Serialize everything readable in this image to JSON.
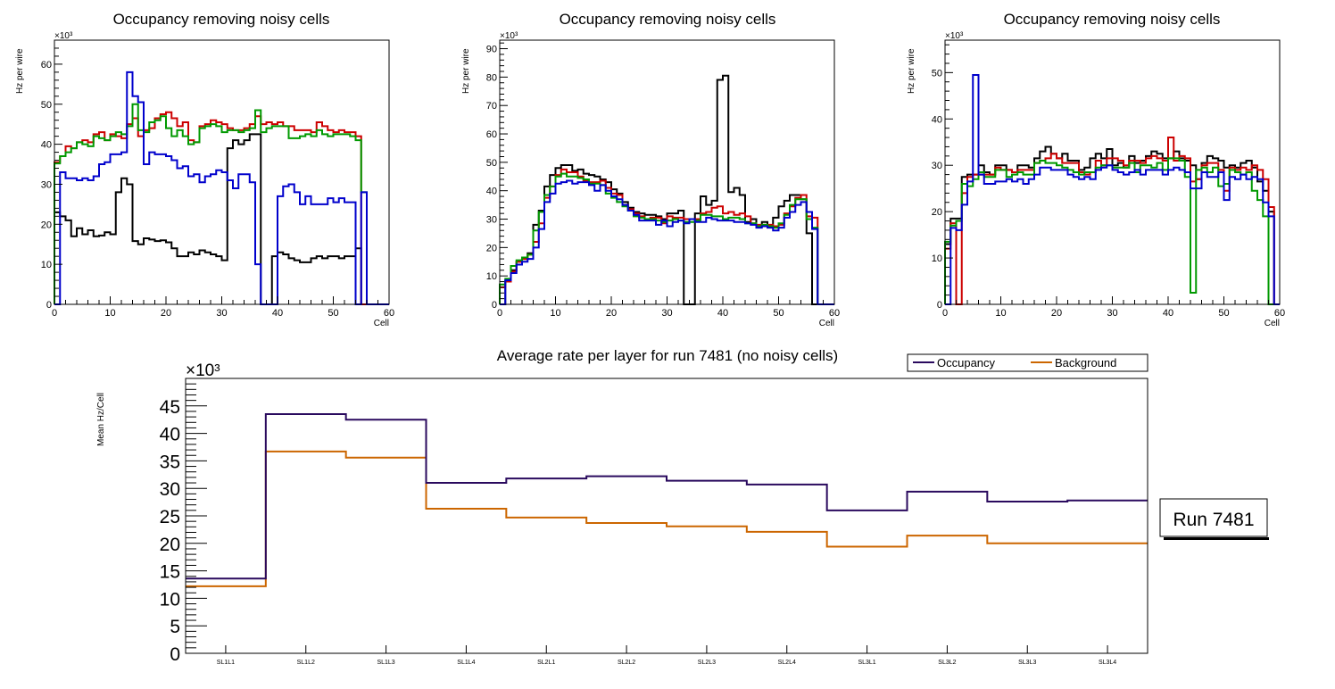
{
  "chart_data": [
    {
      "type": "line",
      "subtype": "step-histogram",
      "title": "Occupancy removing noisy cells",
      "xlabel": "Cell",
      "ylabel": "Hz per wire",
      "y_multiplier_label": "×10³",
      "xlim": [
        0,
        60
      ],
      "ylim": [
        0,
        66
      ],
      "xticks": [
        "0",
        "10",
        "20",
        "30",
        "40",
        "50",
        "60"
      ],
      "yticks": [
        "0",
        "10",
        "20",
        "30",
        "40",
        "50",
        "60"
      ],
      "y_unit": "kHz (×10³ Hz)",
      "series": [
        {
          "name": "black",
          "color": "#000000",
          "values": [
            23,
            22,
            21,
            17,
            19,
            17.5,
            18.5,
            17,
            17.2,
            18,
            17.5,
            28,
            31.5,
            30,
            15.8,
            15,
            16.5,
            16.2,
            15.8,
            16,
            15.5,
            14,
            12,
            12,
            13,
            12.5,
            13.5,
            13,
            12.5,
            12,
            11,
            39,
            41,
            40,
            41,
            42.5,
            42.5,
            0,
            0,
            12,
            13,
            12.5,
            11.5,
            11,
            10.5,
            10.5,
            11.5,
            12,
            11.5,
            12,
            12,
            11.5,
            12,
            12,
            14,
            0,
            0,
            0,
            0,
            0
          ]
        },
        {
          "name": "red",
          "color": "#cc0000",
          "values": [
            35.5,
            37,
            39.5,
            39,
            40.5,
            41,
            40.5,
            42.5,
            43,
            41,
            42.5,
            42,
            41.5,
            45,
            46.5,
            42,
            43.5,
            44,
            46.5,
            47.5,
            48,
            46.5,
            44.5,
            45.5,
            41,
            40.5,
            44.5,
            45,
            46,
            45.5,
            45,
            44,
            43.5,
            43.5,
            44,
            45,
            47,
            45,
            45.5,
            45,
            45.5,
            44.5,
            44.5,
            43.5,
            43.5,
            43.5,
            43,
            45.5,
            44.5,
            43.5,
            43,
            43.5,
            43,
            43,
            42,
            0,
            0,
            0,
            0,
            0
          ]
        },
        {
          "name": "green",
          "color": "#009900",
          "values": [
            35.2,
            37,
            38,
            39,
            40.5,
            40,
            39.5,
            42,
            41.5,
            41,
            42,
            43,
            42.5,
            44.5,
            50,
            43.5,
            43,
            45.5,
            46,
            47,
            44,
            42,
            43.5,
            42,
            40,
            40.5,
            44,
            44.5,
            45,
            44.5,
            43,
            43.5,
            43.5,
            43,
            43.5,
            44,
            48.5,
            43,
            44,
            44.5,
            44.5,
            44.5,
            41.5,
            41.5,
            42,
            42.5,
            42,
            43.5,
            42.5,
            42,
            42.5,
            42.5,
            42.5,
            42,
            41,
            28,
            0,
            0,
            0,
            0
          ]
        },
        {
          "name": "blue",
          "color": "#0000cc",
          "values": [
            0,
            33,
            31.5,
            31.5,
            31,
            31.5,
            31,
            32,
            35,
            35.5,
            37.5,
            37.5,
            38,
            58,
            52,
            50.5,
            35,
            38,
            37.5,
            37.5,
            37,
            36,
            34,
            34.5,
            32,
            32.5,
            30.5,
            32,
            32.5,
            33.5,
            33,
            31,
            29,
            32.5,
            32.5,
            30.5,
            10,
            0,
            0,
            0,
            27,
            29.5,
            30,
            28,
            25,
            27,
            25,
            25,
            25,
            26.5,
            25.5,
            26.5,
            25.5,
            25.5,
            0,
            28,
            0,
            0,
            0,
            0
          ]
        }
      ]
    },
    {
      "type": "line",
      "subtype": "step-histogram",
      "title": "Occupancy removing noisy cells",
      "xlabel": "Cell",
      "ylabel": "Hz per wire",
      "y_multiplier_label": "×10³",
      "xlim": [
        0,
        60
      ],
      "ylim": [
        0,
        93
      ],
      "xticks": [
        "0",
        "10",
        "20",
        "30",
        "40",
        "50",
        "60"
      ],
      "yticks": [
        "0",
        "10",
        "20",
        "30",
        "40",
        "50",
        "60",
        "70",
        "80",
        "90"
      ],
      "y_unit": "kHz (×10³ Hz)",
      "series": [
        {
          "name": "black",
          "color": "#000000",
          "values": [
            0,
            8,
            12,
            15,
            16,
            18,
            28,
            33,
            41.5,
            45.5,
            48,
            49,
            49,
            47,
            47.5,
            46,
            45.5,
            45,
            44,
            43,
            40.5,
            39,
            36,
            34,
            32.5,
            32,
            31.5,
            31.5,
            31,
            30,
            32,
            32,
            33,
            0,
            0,
            32,
            38,
            35,
            36.5,
            79,
            80.5,
            39.5,
            41,
            38.5,
            29,
            30,
            27.5,
            29,
            27.5,
            30.5,
            34.5,
            36.5,
            38.5,
            38.5,
            37,
            25,
            0,
            0,
            0,
            0
          ]
        },
        {
          "name": "red",
          "color": "#cc0000",
          "values": [
            6,
            8,
            11.5,
            15,
            16,
            17.5,
            22,
            28.5,
            37.5,
            41.5,
            45.5,
            47.5,
            46.5,
            46.5,
            45,
            43.5,
            43,
            43,
            43.5,
            41,
            39,
            38.5,
            35,
            33.5,
            32,
            31,
            30,
            30.5,
            30.5,
            28.5,
            31,
            30.5,
            30.5,
            30,
            30,
            30,
            32,
            32.5,
            34,
            34.5,
            32,
            32.5,
            31.5,
            32,
            31,
            28.5,
            28,
            28,
            28,
            27.5,
            28,
            32,
            34.5,
            37.5,
            38.5,
            31,
            30.5,
            0,
            0,
            0
          ]
        },
        {
          "name": "green",
          "color": "#009900",
          "values": [
            7,
            9,
            13.5,
            15.5,
            16.5,
            17.5,
            26,
            32.5,
            38.5,
            41.5,
            45,
            46,
            45,
            45,
            44.5,
            44,
            42.5,
            42.5,
            42,
            39,
            37.5,
            36,
            34.5,
            33,
            31,
            30.5,
            30,
            30,
            29.5,
            29,
            29.5,
            30,
            29.5,
            29,
            29,
            29.5,
            31.5,
            31.5,
            31,
            31,
            30,
            30.5,
            30.5,
            30,
            28.5,
            28.5,
            27.5,
            28,
            27.5,
            27,
            28.5,
            31.5,
            35,
            37,
            37,
            30,
            27,
            0,
            0,
            0
          ]
        },
        {
          "name": "blue",
          "color": "#0000cc",
          "values": [
            0,
            8.5,
            11,
            14,
            15,
            16,
            20,
            26.5,
            36,
            39,
            42.5,
            43,
            43.5,
            42.5,
            43,
            43,
            42,
            40,
            42,
            40,
            38,
            37,
            35,
            33,
            31.5,
            29.5,
            29.5,
            29.5,
            28,
            29.5,
            27.5,
            29,
            29.5,
            28.5,
            30,
            29,
            29,
            30.5,
            30,
            29.5,
            29.5,
            29.5,
            29,
            29,
            28.5,
            28,
            27,
            27.5,
            27,
            26,
            27,
            30.5,
            32.5,
            35,
            36,
            32.5,
            26.5,
            0,
            0,
            0
          ]
        }
      ]
    },
    {
      "type": "line",
      "subtype": "step-histogram",
      "title": "Occupancy removing noisy cells",
      "xlabel": "Cell",
      "ylabel": "Hz per wire",
      "y_multiplier_label": "×10³",
      "xlim": [
        0,
        60
      ],
      "ylim": [
        0,
        57
      ],
      "xticks": [
        "0",
        "10",
        "20",
        "30",
        "40",
        "50",
        "60"
      ],
      "yticks": [
        "0",
        "10",
        "20",
        "30",
        "40",
        "50"
      ],
      "y_unit": "kHz (×10³ Hz)",
      "series": [
        {
          "name": "black",
          "color": "#000000",
          "values": [
            13,
            18.5,
            18.5,
            27.5,
            28,
            28,
            30,
            28.5,
            28,
            30,
            30,
            29,
            28.5,
            30,
            30,
            29.5,
            31.5,
            33,
            34,
            32.5,
            31.5,
            32.5,
            31,
            31,
            29,
            29.5,
            31.5,
            32.5,
            31.5,
            33.5,
            30,
            30.5,
            29.5,
            32,
            30.5,
            31,
            32,
            33,
            32.5,
            31.5,
            31.5,
            33,
            31.5,
            31,
            30,
            27,
            30.5,
            32,
            31.5,
            31,
            29.5,
            30,
            29.5,
            30.5,
            31,
            29.5,
            26.5,
            24.5,
            20,
            0
          ]
        },
        {
          "name": "red",
          "color": "#cc0000",
          "values": [
            12,
            17.5,
            0,
            24,
            27.5,
            28,
            28,
            28,
            28,
            29.5,
            29,
            29,
            28.5,
            29,
            29,
            29,
            30.5,
            31,
            31.5,
            32.5,
            31.5,
            30.5,
            30.5,
            30.5,
            28.5,
            28,
            28.5,
            31,
            30,
            31.5,
            31.5,
            31,
            30,
            31,
            31,
            30.5,
            31.5,
            32,
            31.5,
            31,
            36,
            31,
            32,
            31.5,
            26.5,
            27,
            30,
            30.5,
            30.5,
            29,
            24.5,
            29.5,
            29,
            29.5,
            29,
            30,
            29,
            27,
            21,
            0
          ]
        },
        {
          "name": "green",
          "color": "#009900",
          "values": [
            13.5,
            17,
            18,
            26,
            25.5,
            27,
            28.5,
            27.5,
            27.5,
            29,
            29,
            27.5,
            28,
            28.5,
            28,
            28,
            30.5,
            31,
            30.5,
            30.5,
            30,
            29.5,
            29,
            28.5,
            28,
            28.5,
            28.5,
            29.5,
            30,
            30,
            29.5,
            29.5,
            29.5,
            30.5,
            28.5,
            30,
            30,
            29.5,
            30.5,
            29,
            31.5,
            31.5,
            31,
            27.5,
            2.5,
            29,
            29.5,
            28.5,
            29.5,
            25.5,
            26,
            29,
            28.5,
            28,
            28.5,
            24.5,
            22.5,
            19,
            0,
            0
          ]
        },
        {
          "name": "blue",
          "color": "#0000cc",
          "values": [
            0,
            16.5,
            16,
            21.5,
            26.5,
            49.5,
            28,
            26,
            26,
            26.5,
            26.5,
            27,
            26.5,
            27,
            26,
            27,
            28,
            29.5,
            29.5,
            29,
            29,
            29,
            28,
            27.5,
            27,
            27.5,
            27,
            29,
            29.5,
            30,
            29,
            28.5,
            28,
            28.5,
            29,
            28,
            29,
            29,
            29,
            28,
            29,
            29.5,
            29,
            28.5,
            25,
            25,
            28.5,
            27.5,
            27.5,
            28.5,
            22.5,
            27.5,
            27,
            28,
            27,
            27.5,
            27,
            22,
            19,
            0
          ]
        }
      ]
    },
    {
      "type": "line",
      "subtype": "step-histogram",
      "title": "Average rate per layer for run 7481 (no noisy cells)",
      "xlabel": "",
      "ylabel": "Mean Hz/Cell",
      "y_multiplier_label": "×10³",
      "ylim": [
        0,
        50
      ],
      "categories": [
        "SL1L1",
        "SL1L2",
        "SL1L3",
        "SL1L4",
        "SL2L1",
        "SL2L2",
        "SL2L3",
        "SL2L4",
        "SL3L1",
        "SL3L2",
        "SL3L3",
        "SL3L4"
      ],
      "yticks": [
        "0",
        "5",
        "10",
        "15",
        "20",
        "25",
        "30",
        "35",
        "40",
        "45"
      ],
      "legend": {
        "placement": "top-right",
        "entries": [
          "Occupancy",
          "Background"
        ]
      },
      "annotation": "Run 7481",
      "series": [
        {
          "name": "Occupancy",
          "color": "#2a0a5e",
          "values": [
            13.6,
            43.5,
            42.5,
            31.0,
            31.8,
            32.2,
            31.4,
            30.7,
            26.0,
            29.4,
            27.6,
            27.8
          ]
        },
        {
          "name": "Background",
          "color": "#cc6600",
          "values": [
            12.2,
            36.7,
            35.6,
            26.3,
            24.7,
            23.7,
            23.1,
            22.1,
            19.4,
            21.4,
            20.0,
            20.0
          ]
        }
      ]
    }
  ]
}
